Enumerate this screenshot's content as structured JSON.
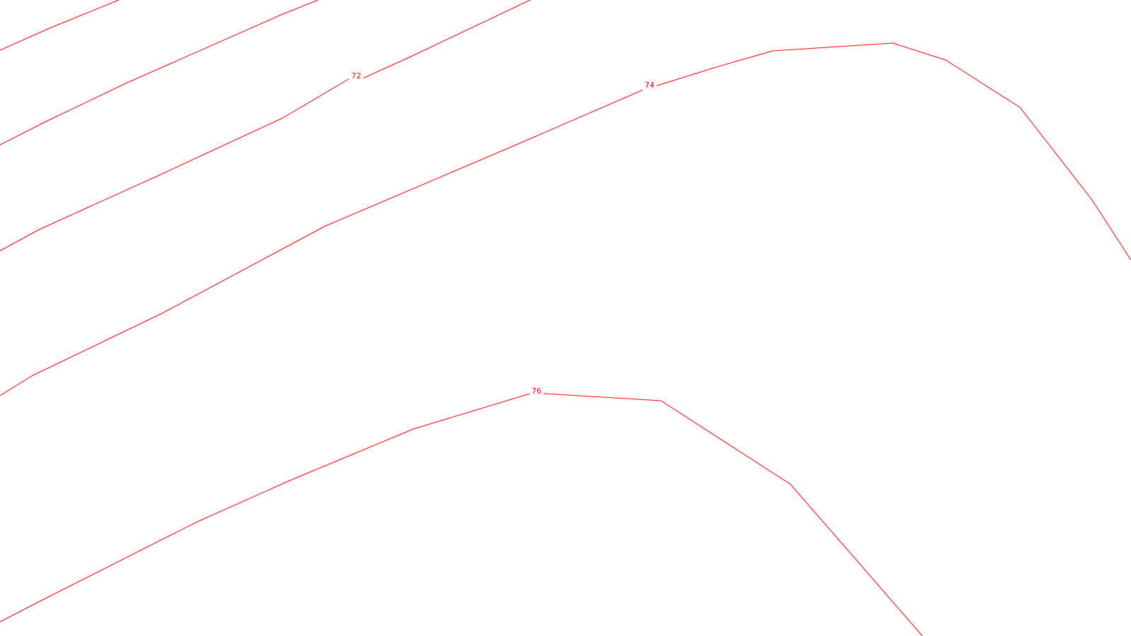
{
  "map": {
    "contour_color": "#ff0000",
    "background_color": "#ffffff",
    "contours": [
      {
        "name": "contour-line-1"
      },
      {
        "name": "contour-line-2"
      },
      {
        "name": "contour-line-3"
      },
      {
        "name": "contour-line-72",
        "label": "72"
      },
      {
        "name": "contour-line-74",
        "label": "74"
      },
      {
        "name": "contour-line-76",
        "label": "76"
      }
    ]
  }
}
